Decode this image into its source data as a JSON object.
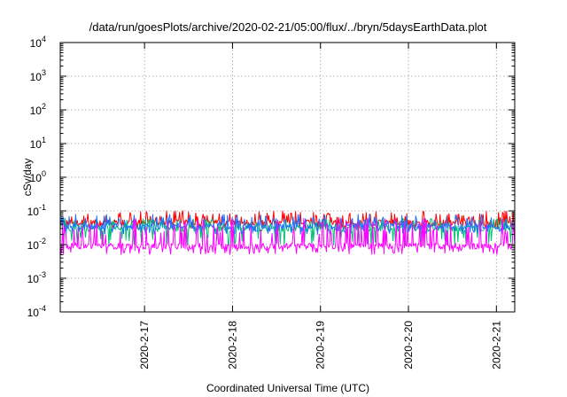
{
  "chart_data": {
    "type": "line",
    "title": "/data/run/goesPlots/archive/2020-02-21/05:00/flux/../bryn/5daysEarthData.plot",
    "xlabel": "Coordinated Universal Time (UTC)",
    "ylabel": "cSv/day",
    "yscale": "log",
    "ylim": [
      0.0001,
      10000
    ],
    "xlim": [
      "2020-02-16 01:00",
      "2020-02-21 05:00"
    ],
    "y_ticks": [
      {
        "value": 0.0001,
        "base": "10",
        "exp": "-4"
      },
      {
        "value": 0.001,
        "base": "10",
        "exp": "-3"
      },
      {
        "value": 0.01,
        "base": "10",
        "exp": "-2"
      },
      {
        "value": 0.1,
        "base": "10",
        "exp": "-1"
      },
      {
        "value": 1,
        "base": "10",
        "exp": "0"
      },
      {
        "value": 10,
        "base": "10",
        "exp": "1"
      },
      {
        "value": 100,
        "base": "10",
        "exp": "2"
      },
      {
        "value": 1000,
        "base": "10",
        "exp": "3"
      },
      {
        "value": 10000,
        "base": "10",
        "exp": "4"
      }
    ],
    "x_ticks": [
      {
        "value": "2020-02-17",
        "label": "2020-2-17"
      },
      {
        "value": "2020-02-18",
        "label": "2020-2-18"
      },
      {
        "value": "2020-02-19",
        "label": "2020-2-19"
      },
      {
        "value": "2020-02-20",
        "label": "2020-2-20"
      },
      {
        "value": "2020-02-21",
        "label": "2020-2-21"
      }
    ],
    "grid": true,
    "series": [
      {
        "color": "#ff0000",
        "baseline": 0.045,
        "peak": 0.1,
        "trough": 0.03
      },
      {
        "color": "#00c070",
        "baseline": 0.03,
        "peak": 0.06,
        "trough": 0.009
      },
      {
        "color": "#1e6fff",
        "baseline": 0.035,
        "peak": 0.08,
        "trough": 0.02
      },
      {
        "color": "#ff00ff",
        "baseline": 0.009,
        "peak": 0.06,
        "trough": 0.005
      }
    ]
  }
}
